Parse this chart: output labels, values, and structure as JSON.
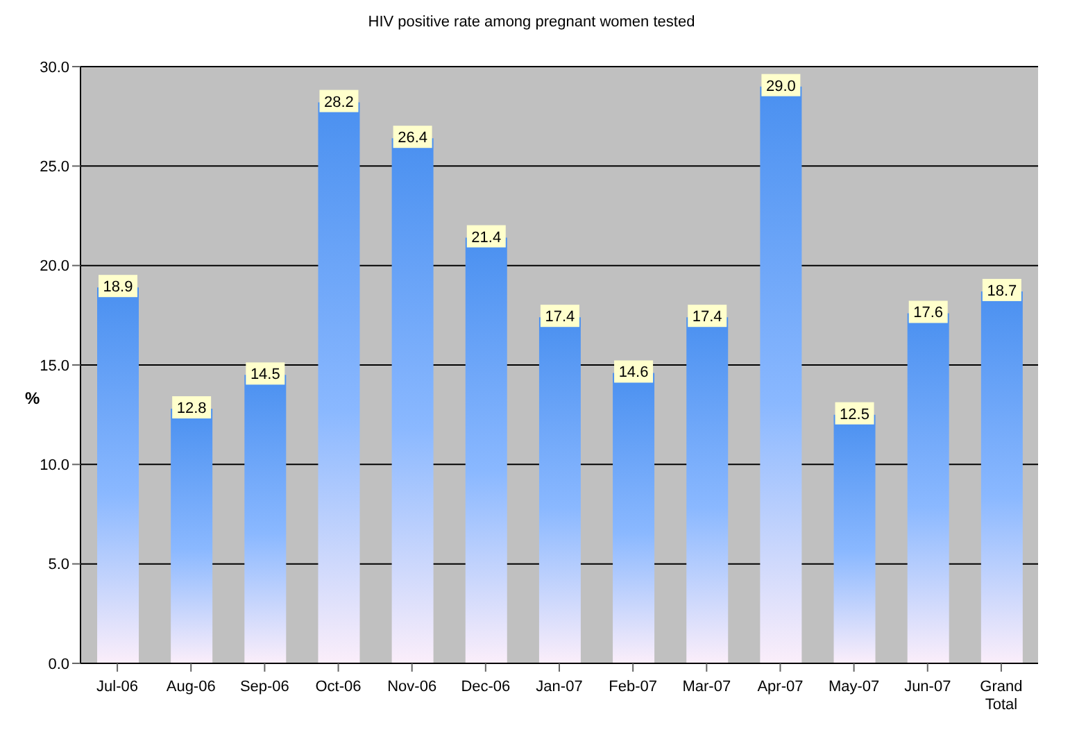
{
  "chart_data": {
    "type": "bar",
    "title": "HIV positive rate among pregnant women tested",
    "ylabel": "%",
    "categories": [
      "Jul-06",
      "Aug-06",
      "Sep-06",
      "Oct-06",
      "Nov-06",
      "Dec-06",
      "Jan-07",
      "Feb-07",
      "Mar-07",
      "Apr-07",
      "May-07",
      "Jun-07",
      "Grand Total"
    ],
    "values": [
      18.9,
      12.8,
      14.5,
      28.2,
      26.4,
      21.4,
      17.4,
      14.6,
      17.4,
      29.0,
      12.5,
      17.6,
      18.7
    ],
    "value_labels": [
      "18.9",
      "12.8",
      "14.5",
      "28.2",
      "26.4",
      "21.4",
      "17.4",
      "14.6",
      "17.4",
      "29.0",
      "12.5",
      "17.6",
      "18.7"
    ],
    "color": "#4a90f0",
    "ylim": [
      0,
      30
    ],
    "yticks": [
      {
        "value": 0,
        "label": "0.0"
      },
      {
        "value": 5,
        "label": "5.0"
      },
      {
        "value": 10,
        "label": "10.0"
      },
      {
        "value": 15,
        "label": "15.0"
      },
      {
        "value": 20,
        "label": "20.0"
      },
      {
        "value": 25,
        "label": "25.0"
      },
      {
        "value": 30,
        "label": "30.0"
      }
    ],
    "grid": "y"
  }
}
